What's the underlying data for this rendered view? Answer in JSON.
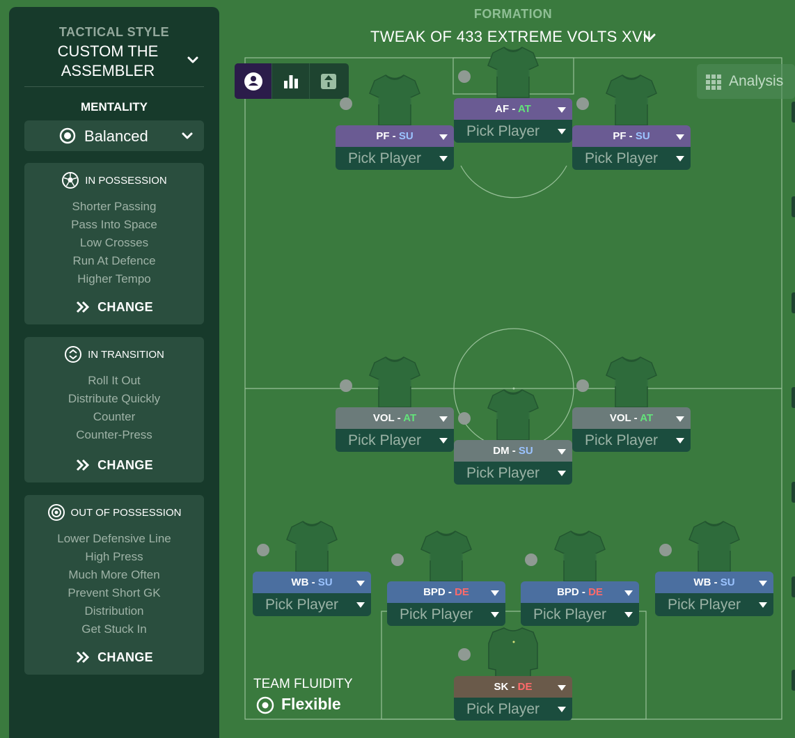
{
  "sidebar": {
    "tactical_style_label": "TACTICAL STYLE",
    "tactical_style_name": "CUSTOM THE ASSEMBLER",
    "mentality_label": "MENTALITY",
    "mentality_value": "Balanced",
    "in_possession": {
      "title": "IN POSSESSION",
      "items": [
        "Shorter Passing",
        "Pass Into Space",
        "Low Crosses",
        "Run At Defence",
        "Higher Tempo"
      ],
      "change_label": "CHANGE"
    },
    "in_transition": {
      "title": "IN TRANSITION",
      "items": [
        "Roll It Out",
        "Distribute Quickly",
        "Counter",
        "Counter-Press"
      ],
      "change_label": "CHANGE"
    },
    "out_of_possession": {
      "title": "OUT OF POSSESSION",
      "items": [
        "Lower Defensive Line",
        "High Press",
        "Much More Often",
        "Prevent Short GK",
        "Distribution",
        "Get Stuck In"
      ],
      "change_label": "CHANGE"
    }
  },
  "header": {
    "formation_label": "FORMATION",
    "formation_name": "TWEAK OF 433 EXTREME VOLTS  XVII"
  },
  "analysis_label": "Analysis",
  "pick_player_label": "Pick Player",
  "players": [
    {
      "role": "AF",
      "duty": "AT"
    },
    {
      "role": "PF",
      "duty": "SU"
    },
    {
      "role": "PF",
      "duty": "SU"
    },
    {
      "role": "VOL",
      "duty": "AT"
    },
    {
      "role": "VOL",
      "duty": "AT"
    },
    {
      "role": "DM",
      "duty": "SU"
    },
    {
      "role": "WB",
      "duty": "SU"
    },
    {
      "role": "BPD",
      "duty": "DE"
    },
    {
      "role": "BPD",
      "duty": "DE"
    },
    {
      "role": "WB",
      "duty": "SU"
    },
    {
      "role": "SK",
      "duty": "DE"
    }
  ],
  "team_fluidity": {
    "label": "TEAM FLUIDITY",
    "value": "Flexible"
  },
  "colors": {
    "pitch": "#3a7a3e",
    "sidebar": "#173a2b",
    "panel": "#2a4e3e",
    "attack_role": "#6a5b93",
    "midfield_role": "#6b7b7a",
    "defence_role": "#4b6fa0",
    "keeper_role": "#6a5a4a",
    "duty_support": "#9bc3ff",
    "duty_attack": "#63e37a",
    "duty_defend": "#ff6a6a"
  },
  "icons": {
    "mentality": "balance-icon",
    "in_possession": "ball-icon",
    "in_transition": "transition-icon",
    "out_of_possession": "defend-icon",
    "change": "double-chevron-icon",
    "fluidity": "target-icon",
    "analysis": "grid-icon"
  }
}
